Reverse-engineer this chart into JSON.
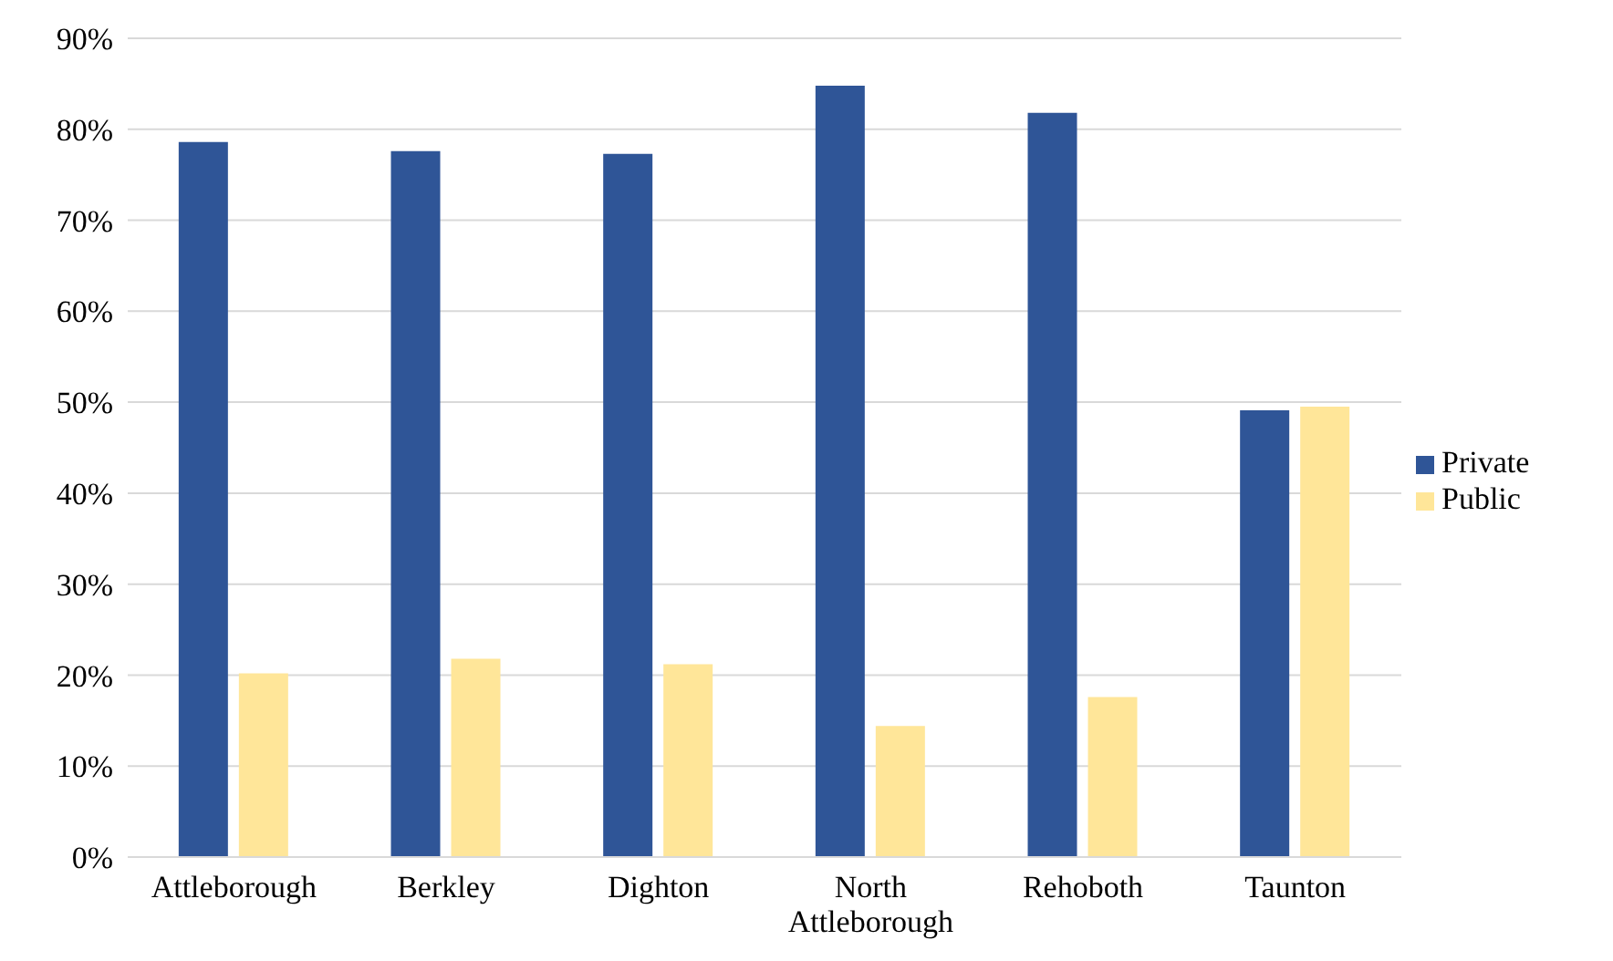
{
  "chart_data": {
    "type": "bar",
    "categories": [
      "Attleborough",
      "Berkley",
      "Dighton",
      "North Attleborough",
      "Rehoboth",
      "Taunton"
    ],
    "series": [
      {
        "name": "Private",
        "color": "#2f5597",
        "values": [
          78.6,
          77.6,
          77.3,
          84.8,
          81.8,
          49.1
        ]
      },
      {
        "name": "Public",
        "color": "#ffe699",
        "values": [
          20.2,
          21.8,
          21.2,
          14.4,
          17.6,
          49.5
        ]
      }
    ],
    "ylim": [
      0,
      90
    ],
    "yticks": [
      {
        "value": 0,
        "label": "0%"
      },
      {
        "value": 10,
        "label": "10%"
      },
      {
        "value": 20,
        "label": "20%"
      },
      {
        "value": 30,
        "label": "30%"
      },
      {
        "value": 40,
        "label": "40%"
      },
      {
        "value": 50,
        "label": "50%"
      },
      {
        "value": 60,
        "label": "60%"
      },
      {
        "value": 70,
        "label": "70%"
      },
      {
        "value": 80,
        "label": "80%"
      },
      {
        "value": 90,
        "label": "90%"
      }
    ],
    "grid": "y",
    "legend": "right"
  }
}
